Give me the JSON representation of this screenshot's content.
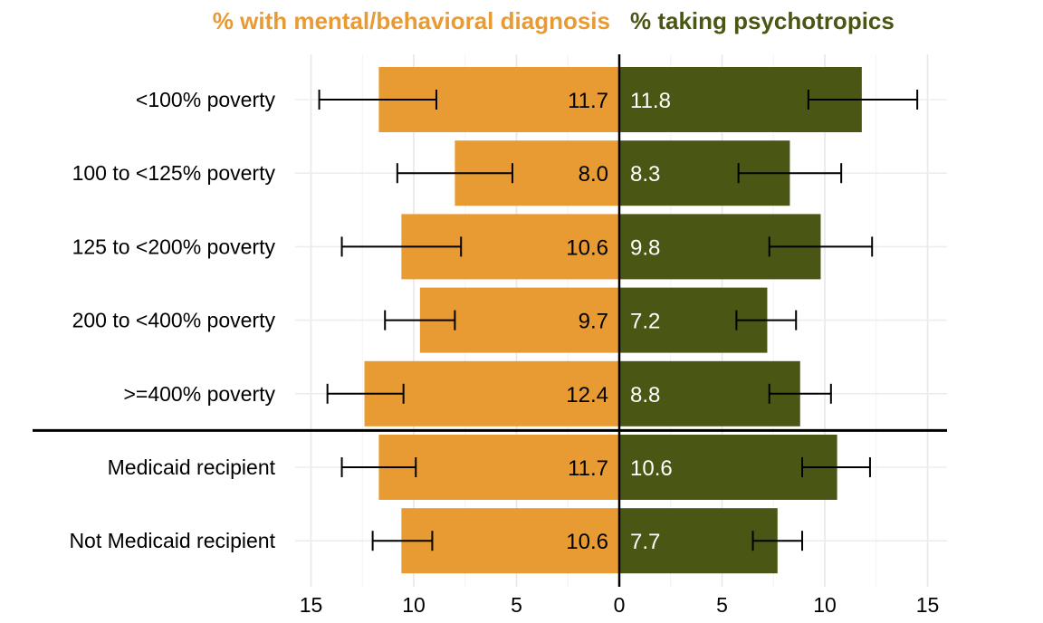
{
  "chart_data": {
    "type": "bar",
    "orientation": "horizontal-diverging",
    "categories": [
      "<100% poverty",
      "100 to <125% poverty",
      "125 to <200% poverty",
      "200 to <400% poverty",
      ">=400% poverty",
      "Medicaid recipient",
      "Not Medicaid recipient"
    ],
    "series": [
      {
        "name": "% with mental/behavioral diagnosis",
        "side": "left",
        "color": "#E89A33",
        "values": [
          11.7,
          8.0,
          10.6,
          9.7,
          12.4,
          11.7,
          10.6
        ],
        "labels": [
          "11.7",
          "8.0",
          "10.6",
          "9.7",
          "12.4",
          "11.7",
          "10.6"
        ],
        "ci_low": [
          8.9,
          5.2,
          7.7,
          8.0,
          10.5,
          9.9,
          9.1
        ],
        "ci_high": [
          14.6,
          10.8,
          13.5,
          11.4,
          14.2,
          13.5,
          12.0
        ]
      },
      {
        "name": "% taking psychotropics",
        "side": "right",
        "color": "#4A5714",
        "values": [
          11.8,
          8.3,
          9.8,
          7.2,
          8.8,
          10.6,
          7.7
        ],
        "labels": [
          "11.8",
          "8.3",
          "9.8",
          "7.2",
          "8.8",
          "10.6",
          "7.7"
        ],
        "ci_low": [
          9.2,
          5.8,
          7.3,
          5.7,
          7.3,
          8.9,
          6.5
        ],
        "ci_high": [
          14.5,
          10.8,
          12.3,
          8.6,
          10.3,
          12.2,
          8.9
        ]
      }
    ],
    "x_ticks": [
      "15",
      "10",
      "5",
      "0",
      "5",
      "10",
      "15"
    ],
    "x_tick_values": [
      -15,
      -10,
      -5,
      0,
      5,
      10,
      15
    ],
    "xlim": [
      -15,
      15
    ],
    "separator_after_index": 4,
    "grid": true,
    "title_left_color": "#E89A33",
    "title_right_color": "#4A5714"
  }
}
